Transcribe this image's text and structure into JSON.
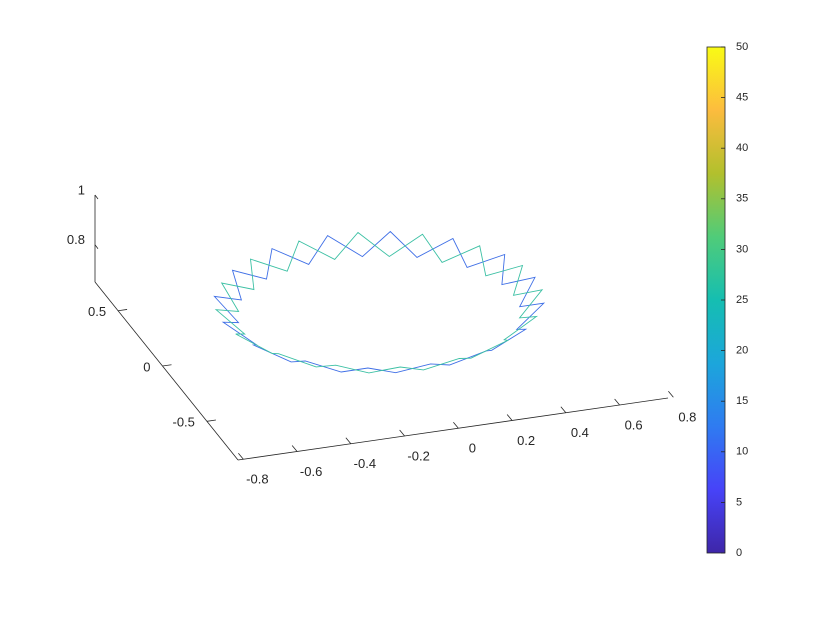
{
  "chart_data": {
    "type": "line3d",
    "xlim": [
      -0.82,
      0.78
    ],
    "ylim": [
      -0.85,
      0.76
    ],
    "zlim": [
      0.65,
      1
    ],
    "xticks": [
      -0.8,
      -0.6,
      -0.4,
      -0.2,
      0,
      0.2,
      0.4,
      0.6,
      0.8
    ],
    "yticks": [
      -0.5,
      0,
      0.5
    ],
    "zticks": [
      0.8,
      1
    ],
    "colorbar": {
      "clim": [
        0,
        50
      ],
      "ticks": [
        0,
        5,
        10,
        15,
        20,
        25,
        30,
        35,
        40,
        45,
        50
      ],
      "colormap": [
        "#3e26a8",
        "#4743f8",
        "#2f7bf1",
        "#1ca6db",
        "#15beb1",
        "#50cc79",
        "#b2c02d",
        "#fcbc3e",
        "#f9fb15"
      ]
    },
    "series": [
      {
        "color": "#3f6fe6",
        "x": [
          0.48,
          0.39,
          0.44,
          0.32,
          0.31,
          0.18,
          0.12,
          0,
          -0.1,
          -0.2,
          -0.32,
          -0.38,
          -0.51,
          -0.52,
          -0.64,
          -0.59,
          -0.68,
          -0.59,
          -0.64,
          -0.52,
          -0.51,
          -0.38,
          -0.32,
          -0.2,
          -0.1,
          0,
          0.12,
          0.18,
          0.31,
          0.32,
          0.44,
          0.39
        ],
        "y": [
          -0.26,
          -0.16,
          -0.04,
          0.02,
          0.15,
          0.16,
          0.28,
          0.23,
          0.32,
          0.23,
          0.28,
          0.16,
          0.15,
          0.02,
          -0.04,
          -0.16,
          -0.26,
          -0.36,
          -0.48,
          -0.54,
          -0.67,
          -0.68,
          -0.8,
          -0.75,
          -0.84,
          -0.75,
          -0.8,
          -0.68,
          -0.67,
          -0.54,
          -0.48,
          -0.36
        ],
        "z": [
          0.92,
          0.86,
          0.92,
          0.86,
          0.92,
          0.86,
          0.92,
          0.86,
          0.92,
          0.86,
          0.92,
          0.86,
          0.92,
          0.86,
          0.92,
          0.86,
          0.92,
          0.86,
          0.92,
          0.86,
          0.92,
          0.86,
          0.92,
          0.86,
          0.92,
          0.86,
          0.92,
          0.86,
          0.92,
          0.86,
          0.92,
          0.86
        ]
      },
      {
        "color": "#3cc0a4",
        "x": [
          0.4,
          0.47,
          0.36,
          0.38,
          0.25,
          0.22,
          0.09,
          0.01,
          -0.1,
          -0.21,
          -0.29,
          -0.42,
          -0.45,
          -0.58,
          -0.56,
          -0.67,
          -0.6,
          -0.67,
          -0.56,
          -0.58,
          -0.45,
          -0.42,
          -0.29,
          -0.21,
          -0.1,
          0.01,
          0.09,
          0.22,
          0.25,
          0.38,
          0.36,
          0.47
        ],
        "y": [
          -0.26,
          -0.15,
          -0.07,
          0.06,
          0.09,
          0.22,
          0.2,
          0.31,
          0.24,
          0.31,
          0.2,
          0.22,
          0.09,
          0.06,
          -0.07,
          -0.15,
          -0.26,
          -0.37,
          -0.45,
          -0.58,
          -0.61,
          -0.74,
          -0.72,
          -0.83,
          -0.76,
          -0.83,
          -0.72,
          -0.74,
          -0.61,
          -0.58,
          -0.45,
          -0.37
        ],
        "z": [
          0.86,
          0.92,
          0.86,
          0.92,
          0.86,
          0.92,
          0.86,
          0.92,
          0.86,
          0.92,
          0.86,
          0.92,
          0.86,
          0.92,
          0.86,
          0.92,
          0.86,
          0.92,
          0.86,
          0.92,
          0.86,
          0.92,
          0.86,
          0.92,
          0.86,
          0.92,
          0.86,
          0.92,
          0.86,
          0.92,
          0.86,
          0.92
        ]
      }
    ]
  }
}
